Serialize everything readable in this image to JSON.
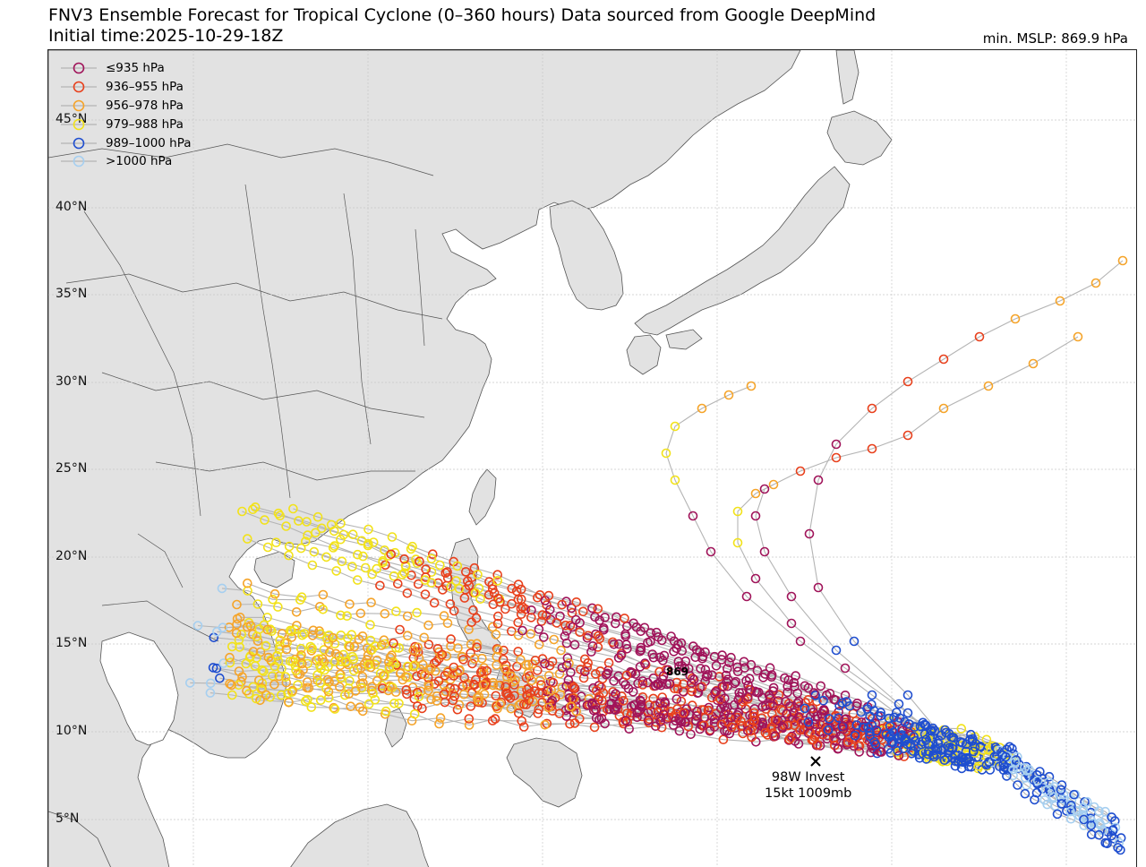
{
  "header": {
    "title": "FNV3 Ensemble Forecast for Tropical Cyclone (0–360 hours) Data sourced from Google DeepMind",
    "subtitle": "Initial time:2025-10-29-18Z",
    "min_mslp": "min. MSLP: 869.9 hPa"
  },
  "lat_labels": [
    "45°N",
    "40°N",
    "35°N",
    "30°N",
    "25°N",
    "20°N",
    "15°N",
    "10°N",
    "5°N"
  ],
  "legend": [
    {
      "label": "≤935 hPa",
      "color": "#a0145a"
    },
    {
      "label": "936–955 hPa",
      "color": "#e8401c"
    },
    {
      "label": "956–978 hPa",
      "color": "#f5a42a"
    },
    {
      "label": "979–988 hPa",
      "color": "#f2e21a"
    },
    {
      "label": "989–1000 hPa",
      "color": "#1f4ecf"
    },
    {
      "label": ">1000 hPa",
      "color": "#a6cff0"
    }
  ],
  "storm": {
    "name_line": "98W Invest",
    "detail_line": "15kt 1009mb",
    "min_marker": "869"
  },
  "colors": {
    "land": "#e2e2e2",
    "ocean": "#ffffff",
    "border": "#555555",
    "grid": "#c8c8c8",
    "track": "#b4b4b4"
  }
}
